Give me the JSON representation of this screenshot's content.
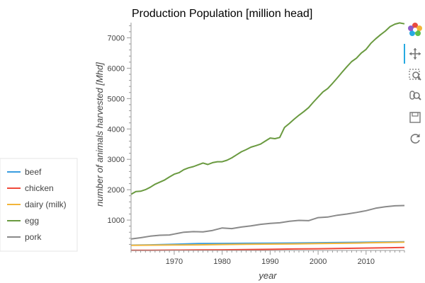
{
  "chart_data": {
    "type": "line",
    "title": "Production Population [million head]",
    "xlabel": "year",
    "ylabel": "number of animals harvested [Mhd]",
    "xlim": [
      1961,
      2018
    ],
    "ylim": [
      0,
      7500
    ],
    "x_ticks": [
      1970,
      1980,
      1990,
      2000,
      2010
    ],
    "y_ticks": [
      1000,
      2000,
      3000,
      4000,
      5000,
      6000,
      7000
    ],
    "grid": false,
    "legend_position": "left-outside",
    "series": [
      {
        "name": "beef",
        "color": "#3a9de0",
        "x": [
          1961,
          1965,
          1970,
          1975,
          1980,
          1985,
          1990,
          1995,
          2000,
          2005,
          2010,
          2015,
          2018
        ],
        "y": [
          175,
          185,
          205,
          225,
          230,
          235,
          240,
          245,
          255,
          262,
          270,
          280,
          285
        ]
      },
      {
        "name": "chicken",
        "color": "#f04a3a",
        "x": [
          1961,
          1965,
          1970,
          1975,
          1980,
          1985,
          1990,
          1995,
          2000,
          2005,
          2010,
          2015,
          2018
        ],
        "y": [
          5,
          8,
          12,
          17,
          22,
          30,
          38,
          48,
          57,
          68,
          80,
          92,
          100
        ]
      },
      {
        "name": "dairy (milk)",
        "color": "#f2b53a",
        "x": [
          1961,
          1965,
          1970,
          1975,
          1980,
          1985,
          1990,
          1995,
          2000,
          2005,
          2010,
          2015,
          2018
        ],
        "y": [
          170,
          175,
          180,
          185,
          195,
          205,
          210,
          215,
          225,
          235,
          250,
          265,
          275
        ]
      },
      {
        "name": "egg",
        "color": "#6a9a40",
        "x": [
          1961,
          1962,
          1963,
          1964,
          1965,
          1966,
          1967,
          1968,
          1969,
          1970,
          1971,
          1972,
          1973,
          1974,
          1975,
          1976,
          1977,
          1978,
          1979,
          1980,
          1981,
          1982,
          1983,
          1984,
          1985,
          1986,
          1987,
          1988,
          1989,
          1990,
          1991,
          1992,
          1993,
          1994,
          1995,
          1996,
          1997,
          1998,
          1999,
          2000,
          2001,
          2002,
          2003,
          2004,
          2005,
          2006,
          2007,
          2008,
          2009,
          2010,
          2011,
          2012,
          2013,
          2014,
          2015,
          2016,
          2017,
          2018
        ],
        "y": [
          1850,
          1940,
          1950,
          2000,
          2080,
          2180,
          2250,
          2320,
          2420,
          2510,
          2560,
          2660,
          2720,
          2760,
          2820,
          2880,
          2830,
          2890,
          2920,
          2920,
          2970,
          3050,
          3150,
          3250,
          3320,
          3400,
          3450,
          3500,
          3600,
          3700,
          3680,
          3720,
          4050,
          4180,
          4320,
          4450,
          4570,
          4700,
          4880,
          5050,
          5220,
          5330,
          5500,
          5680,
          5870,
          6050,
          6220,
          6330,
          6500,
          6620,
          6820,
          6970,
          7100,
          7220,
          7370,
          7450,
          7490,
          7460
        ]
      },
      {
        "name": "pork",
        "color": "#8a8a8a",
        "x": [
          1961,
          1963,
          1965,
          1967,
          1969,
          1970,
          1972,
          1974,
          1976,
          1978,
          1980,
          1982,
          1984,
          1986,
          1988,
          1990,
          1992,
          1994,
          1996,
          1998,
          2000,
          2002,
          2004,
          2006,
          2008,
          2010,
          2012,
          2014,
          2016,
          2018
        ],
        "y": [
          380,
          420,
          470,
          500,
          510,
          540,
          600,
          620,
          610,
          660,
          740,
          720,
          770,
          810,
          860,
          890,
          910,
          960,
          990,
          980,
          1080,
          1100,
          1160,
          1200,
          1250,
          1310,
          1390,
          1440,
          1470,
          1480
        ]
      }
    ]
  },
  "toolbar": {
    "tools": [
      {
        "name": "bokeh-logo-icon",
        "interactable": false
      },
      {
        "name": "pan-icon",
        "interactable": true
      },
      {
        "name": "box-zoom-icon",
        "interactable": true
      },
      {
        "name": "wheel-zoom-icon",
        "interactable": true
      },
      {
        "name": "save-icon",
        "interactable": true
      },
      {
        "name": "reset-icon",
        "interactable": true
      }
    ]
  }
}
